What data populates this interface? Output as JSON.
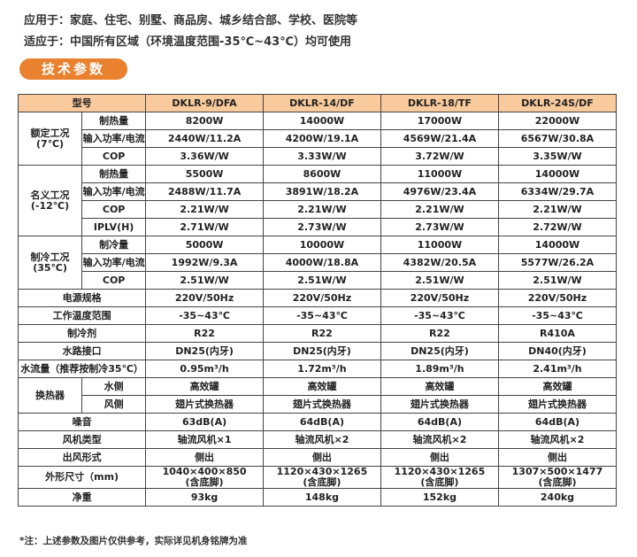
{
  "intro": {
    "line1": "应用于：家庭、住宅、别墅、商品房、城乡结合部、学校、医院等",
    "line2": "适应于：中国所有区域（环境温度范围-35℃~43℃）均可使用"
  },
  "section_title": "技术参数",
  "table": {
    "header": {
      "label": "型号",
      "models": [
        "DKLR-9/DFA",
        "DKLR-14/DF",
        "DKLR-18/TF",
        "DKLR-24S/DF"
      ]
    },
    "groups": [
      {
        "label": "额定工况\n(7℃)",
        "rows": [
          {
            "label": "制热量",
            "values": [
              "8200W",
              "14000W",
              "17000W",
              "22000W"
            ]
          },
          {
            "label": "输入功率/电流",
            "values": [
              "2440W/11.2A",
              "4200W/19.1A",
              "4569W/21.4A",
              "6567W/30.8A"
            ]
          },
          {
            "label": "COP",
            "values": [
              "3.36W/W",
              "3.33W/W",
              "3.72W/W",
              "3.35W/W"
            ]
          }
        ]
      },
      {
        "label": "名义工况\n(-12℃)",
        "rows": [
          {
            "label": "制热量",
            "values": [
              "5500W",
              "8600W",
              "11000W",
              "14000W"
            ]
          },
          {
            "label": "输入功率/电流",
            "values": [
              "2488W/11.7A",
              "3891W/18.2A",
              "4976W/23.4A",
              "6334W/29.7A"
            ]
          },
          {
            "label": "COP",
            "values": [
              "2.21W/W",
              "2.21W/W",
              "2.21W/W",
              "2.21W/W"
            ]
          },
          {
            "label": "IPLV(H)",
            "values": [
              "2.71W/W",
              "2.73W/W",
              "2.73W/W",
              "2.72W/W"
            ]
          }
        ]
      },
      {
        "label": "制冷工况\n(35℃)",
        "rows": [
          {
            "label": "制冷量",
            "values": [
              "5000W",
              "10000W",
              "11000W",
              "14000W"
            ]
          },
          {
            "label": "输入功率/电流",
            "values": [
              "1992W/9.3A",
              "4000W/18.8A",
              "4382W/20.5A",
              "5577W/26.2A"
            ]
          },
          {
            "label": "COP",
            "values": [
              "2.51W/W",
              "2.51W/W",
              "2.51W/W",
              "2.51W/W"
            ]
          }
        ]
      }
    ],
    "single_rows_a": [
      {
        "label": "电源规格",
        "values": [
          "220V/50Hz",
          "220V/50Hz",
          "220V/50Hz",
          "220V/50Hz"
        ]
      },
      {
        "label": "工作温度范围",
        "values": [
          "-35~43℃",
          "-35~43℃",
          "-35~43℃",
          "-35~43℃"
        ]
      },
      {
        "label": "制冷剂",
        "values": [
          "R22",
          "R22",
          "R22",
          "R410A"
        ]
      },
      {
        "label": "水路接口",
        "values": [
          "DN25(内牙)",
          "DN25(内牙)",
          "DN25(内牙)",
          "DN40(内牙)"
        ]
      },
      {
        "label": "水流量（推荐按制冷35℃）",
        "values": [
          "0.95m³/h",
          "1.72m³/h",
          "1.89m³/h",
          "2.41m³/h"
        ]
      }
    ],
    "heat_exchanger": {
      "label": "换热器",
      "rows": [
        {
          "label": "水侧",
          "values": [
            "高效罐",
            "高效罐",
            "高效罐",
            "高效罐"
          ]
        },
        {
          "label": "风侧",
          "values": [
            "翅片式换热器",
            "翅片式换热器",
            "翅片式换热器",
            "翅片式换热器"
          ]
        }
      ]
    },
    "single_rows_b": [
      {
        "label": "噪音",
        "values": [
          "63dB(A)",
          "64dB(A)",
          "64dB(A)",
          "64dB(A)"
        ]
      },
      {
        "label": "风机类型",
        "values": [
          "轴流风机×1",
          "轴流风机×2",
          "轴流风机×2",
          "轴流风机×2"
        ]
      },
      {
        "label": "出风形式",
        "values": [
          "侧出",
          "侧出",
          "侧出",
          "侧出"
        ]
      },
      {
        "label": "外形尺寸（mm)",
        "values": [
          "1040×400×850\n(含底脚)",
          "1120×430×1265\n(含底脚)",
          "1120×430×1265\n(含底脚)",
          "1307×500×1477\n(含底脚)"
        ]
      },
      {
        "label": "净重",
        "values": [
          "93kg",
          "148kg",
          "152kg",
          "240kg"
        ]
      }
    ]
  },
  "note": "*注：上述参数及图片仅供参考，实际详见机身铭牌为准"
}
